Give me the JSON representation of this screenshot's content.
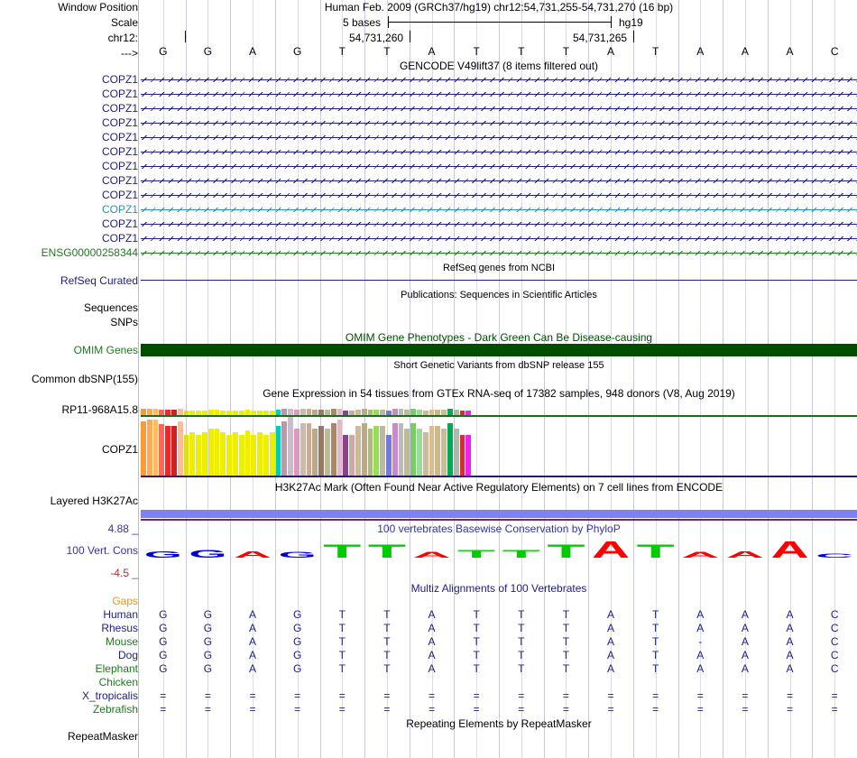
{
  "header": {
    "window_position_label": "Window Position",
    "window_position_value": "Human Feb. 2009 (GRCh37/hg19)   chr12:54,731,255-54,731,270 (16 bp)",
    "scale_label": "Scale",
    "scale_text": "5 bases",
    "scale_db": "hg19",
    "chrom_label": "chr12:",
    "coord1": "54,731,260",
    "coord2": "54,731,265",
    "strand_label": "--->"
  },
  "bases": [
    "G",
    "G",
    "A",
    "G",
    "T",
    "T",
    "A",
    "T",
    "T",
    "T",
    "A",
    "T",
    "A",
    "A",
    "A",
    "C"
  ],
  "gencode": {
    "title": "GENCODE V49lift37 (8 items filtered out)",
    "items": [
      {
        "name": "COPZ1",
        "color": "#1d1d83"
      },
      {
        "name": "COPZ1",
        "color": "#1d1d83"
      },
      {
        "name": "COPZ1",
        "color": "#1d1d83"
      },
      {
        "name": "COPZ1",
        "color": "#1d1d83"
      },
      {
        "name": "COPZ1",
        "color": "#1d1d83"
      },
      {
        "name": "COPZ1",
        "color": "#1d1d83"
      },
      {
        "name": "COPZ1",
        "color": "#1d1d83"
      },
      {
        "name": "COPZ1",
        "color": "#1d1d83"
      },
      {
        "name": "COPZ1",
        "color": "#1d1d83"
      },
      {
        "name": "COPZ1",
        "color": "#2a8fb3"
      },
      {
        "name": "COPZ1",
        "color": "#1d1d83"
      },
      {
        "name": "COPZ1",
        "color": "#1d1d83"
      },
      {
        "name": "ENSG00000258344",
        "color": "#1f7a1f"
      }
    ]
  },
  "refseq": {
    "title": "RefSeq genes from NCBI",
    "label": "RefSeq Curated"
  },
  "publications": {
    "title": "Publications: Sequences in Scientific Articles",
    "label1": "Sequences",
    "label2": "SNPs"
  },
  "omim": {
    "title": "OMIM Gene Phenotypes - Dark Green Can Be Disease-causing",
    "label": "OMIM Genes"
  },
  "dbsnp": {
    "title": "Short Genetic Variants from dbSNP release 155",
    "label": "Common dbSNP(155)"
  },
  "gtex": {
    "title": "Gene Expression in 54 tissues from GTEx RNA-seq of 17382 samples, 948 donors (V8, Aug 2019)",
    "label1": "RP11-968A15.8",
    "label2": "COPZ1",
    "colors": [
      "#ff9933",
      "#ffaa55",
      "#ffbb66",
      "#ff6655",
      "#ff2222",
      "#cc2222",
      "#ffbb99",
      "#dddd22",
      "#eeee00",
      "#eeee00",
      "#eeee00",
      "#eeee00",
      "#eeee00",
      "#eeee00",
      "#eeee00",
      "#eeee00",
      "#eeee00",
      "#eeee00",
      "#eeee00",
      "#eeee00",
      "#eeee00",
      "#eeee00",
      "#00ccbb",
      "#bb99aa",
      "#ccbbcc",
      "#dd99bb",
      "#ccbbaa",
      "#ccaa99",
      "#bbaa88",
      "#997766",
      "#bbbb99",
      "#aa8866",
      "#ddbbcc",
      "#884488",
      "#ccaaaa",
      "#ccbb99",
      "#bbaa88",
      "#aabb88",
      "#99dd55",
      "#bbbb99",
      "#7777dd",
      "#cc88cc",
      "#bbbbbb",
      "#bbbb99",
      "#77cc66",
      "#99dd99",
      "#ccbb99",
      "#ddbb99",
      "#ccbb88",
      "#ccbb99",
      "#00aa55",
      "#aabbaa",
      "#cc3333",
      "#ee22ee"
    ],
    "values": [
      60,
      62,
      62,
      57,
      55,
      55,
      60,
      45,
      48,
      45,
      48,
      52,
      52,
      48,
      45,
      48,
      45,
      50,
      45,
      48,
      45,
      48,
      55,
      60,
      65,
      52,
      58,
      58,
      52,
      55,
      52,
      58,
      62,
      45,
      45,
      55,
      58,
      52,
      55,
      55,
      45,
      58,
      58,
      52,
      58,
      52,
      48,
      55,
      55,
      52,
      58,
      52,
      45,
      45
    ]
  },
  "h3k27ac": {
    "title": "H3K27Ac Mark (Often Found Near Active Regulatory Elements) on 7 cell lines from ENCODE",
    "label": "Layered H3K27Ac"
  },
  "phylop": {
    "title": "100 vertebrates Basewise Conservation by PhyloP",
    "label": "100 Vert. Cons",
    "max": "4.88 _",
    "min": "-4.5 _",
    "heights": [
      0.35,
      0.4,
      0.35,
      0.3,
      0.7,
      0.7,
      0.3,
      0.4,
      0.4,
      0.7,
      0.85,
      0.7,
      0.3,
      0.35,
      0.85,
      0.2
    ],
    "base_colors": {
      "A": "#ff0000",
      "C": "#0000cc",
      "G": "#0000cc",
      "T": "#00cc00"
    }
  },
  "multiz": {
    "title": "Multiz Alignments of 100 Vertebrates",
    "gaps_label": "Gaps",
    "species": [
      {
        "name": "Human",
        "color": "#1d1d83",
        "seq": [
          "G",
          "G",
          "A",
          "G",
          "T",
          "T",
          "A",
          "T",
          "T",
          "T",
          "A",
          "T",
          "A",
          "A",
          "A",
          "C"
        ]
      },
      {
        "name": "Rhesus",
        "color": "#1d1d83",
        "seq": [
          "G",
          "G",
          "A",
          "G",
          "T",
          "T",
          "A",
          "T",
          "T",
          "T",
          "A",
          "T",
          "A",
          "A",
          "A",
          "C"
        ]
      },
      {
        "name": "Mouse",
        "color": "#1f7a1f",
        "seq": [
          "G",
          "G",
          "A",
          "G",
          "T",
          "T",
          "A",
          "T",
          "T",
          "T",
          "A",
          "T",
          "-",
          "A",
          "A",
          "C"
        ]
      },
      {
        "name": "Dog",
        "color": "#1d1d83",
        "seq": [
          "G",
          "G",
          "A",
          "G",
          "T",
          "T",
          "A",
          "T",
          "T",
          "T",
          "A",
          "T",
          "A",
          "A",
          "A",
          "C"
        ]
      },
      {
        "name": "Elephant",
        "color": "#1f7a1f",
        "seq": [
          "G",
          "G",
          "A",
          "G",
          "T",
          "T",
          "A",
          "T",
          "T",
          "T",
          "A",
          "T",
          "A",
          "A",
          "A",
          "C"
        ]
      },
      {
        "name": "Chicken",
        "color": "#1f7a1f",
        "seq": []
      },
      {
        "name": "X_tropicalis",
        "color": "#1d1d83",
        "seq": [
          "=",
          "=",
          "=",
          "=",
          "=",
          "=",
          "=",
          "=",
          "=",
          "=",
          "=",
          "=",
          "=",
          "=",
          "=",
          "="
        ]
      },
      {
        "name": "Zebrafish",
        "color": "#1f7a1f",
        "seq": [
          "=",
          "=",
          "=",
          "=",
          "=",
          "=",
          "=",
          "=",
          "=",
          "=",
          "=",
          "=",
          "=",
          "=",
          "=",
          "="
        ]
      }
    ]
  },
  "repeatmasker": {
    "title": "Repeating Elements by RepeatMasker",
    "label": "RepeatMasker"
  },
  "colors": {
    "gencode_navy": "#1d1d83",
    "omim_green": "#004d00",
    "gtex_line": "#1b6b1b",
    "h3k27ac_band": "#8080f0",
    "label_orange": "#e8961e",
    "phylop_label": "#3333aa"
  }
}
